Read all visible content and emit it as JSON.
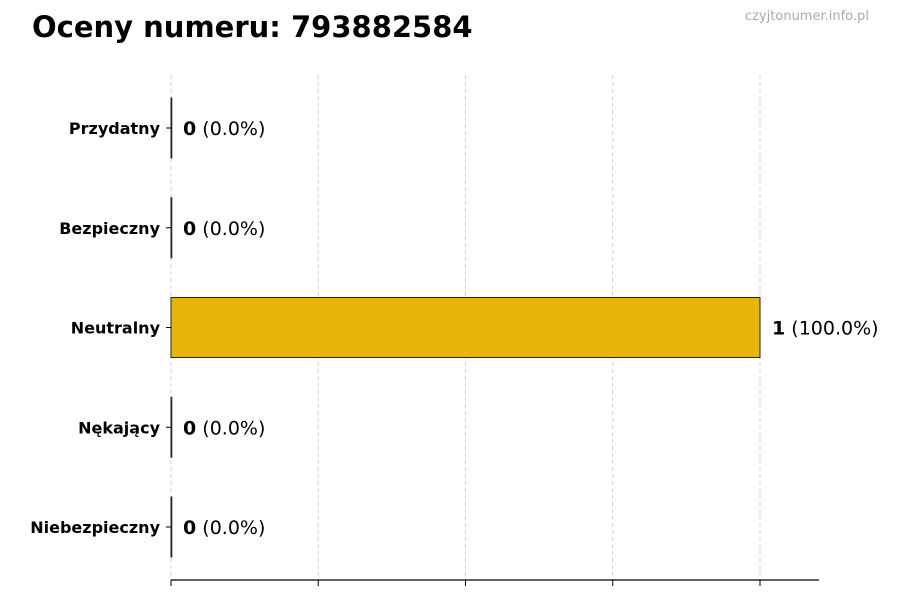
{
  "header": {
    "title": "Oceny numeru: 793882584",
    "watermark": "czyjtonumer.info.pl"
  },
  "chart_data": {
    "type": "bar",
    "orientation": "horizontal",
    "categories": [
      "Przydatny",
      "Bezpieczny",
      "Neutralny",
      "Nękający",
      "Niebezpieczny"
    ],
    "values": [
      0,
      0,
      1,
      0,
      0
    ],
    "percent_labels": [
      "(0.0%)",
      "(0.0%)",
      "(100.0%)",
      "(0.0%)",
      "(0.0%)"
    ],
    "bar_color": "#E8B40A",
    "xlim": [
      0,
      1.1
    ],
    "xticks": [
      0,
      0.25,
      0.5,
      0.75,
      1
    ],
    "xtick_labels_shown": false,
    "grid": "vertical dashed",
    "xlabel": "",
    "ylabel": ""
  }
}
